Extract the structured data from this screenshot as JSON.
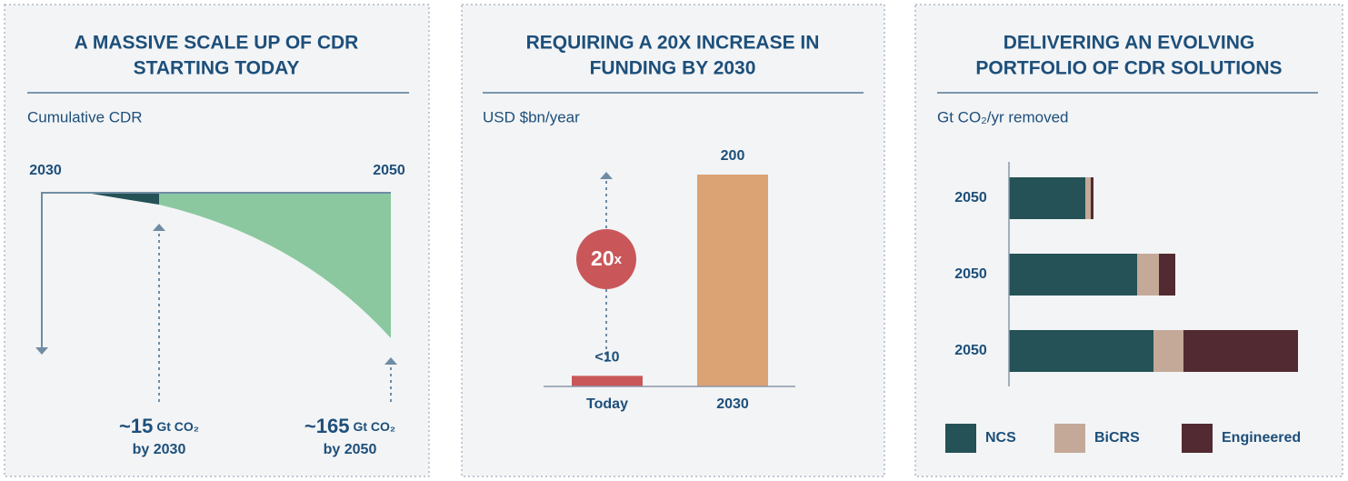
{
  "chart_data": [
    {
      "type": "area",
      "title": [
        "A MASSIVE SCALE UP OF CDR",
        "STARTING TODAY"
      ],
      "y_label": "Cumulative CDR",
      "x_labels": [
        "2030",
        "2050"
      ],
      "colors": [
        "#245256",
        "#8bc8a0"
      ],
      "annotations": [
        {
          "value": "~15",
          "unit": "Gt CO₂",
          "note": "by 2030"
        },
        {
          "value": "~165",
          "unit": "Gt CO₂",
          "note": "by 2050"
        }
      ]
    },
    {
      "type": "bar",
      "title": [
        "REQUIRING A 20X INCREASE IN",
        "FUNDING BY 2030"
      ],
      "y_label": "USD $bn/year",
      "categories": [
        "Today",
        "2030"
      ],
      "values": [
        10,
        200
      ],
      "value_labels": [
        "<10",
        "200"
      ],
      "colors": [
        "#c9575a",
        "#dba274"
      ],
      "ylim": [
        0,
        200
      ],
      "annotation": {
        "value": "20",
        "unit": "x"
      }
    },
    {
      "type": "hbar",
      "title": [
        "DELIVERING AN EVOLVING",
        "PORTFOLIO OF CDR SOLUTIONS"
      ],
      "y_label": "Gt CO₂/yr removed",
      "categories": [
        "2050",
        "2050",
        "2050"
      ],
      "series": [
        {
          "name": "NCS",
          "color": "#245256",
          "values": [
            2.8,
            4.7,
            5.3
          ]
        },
        {
          "name": "BiCRS",
          "color": "#c4a998",
          "values": [
            0.2,
            0.8,
            1.1
          ]
        },
        {
          "name": "Engineered",
          "color": "#512b31",
          "values": [
            0.1,
            0.6,
            4.2
          ]
        }
      ],
      "xlim": [
        0,
        11
      ]
    }
  ]
}
